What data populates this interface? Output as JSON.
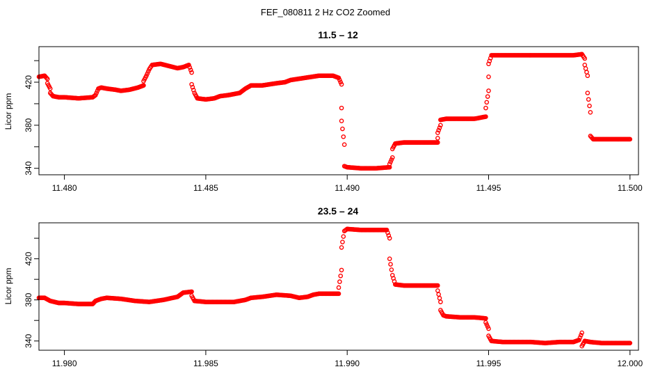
{
  "figure": {
    "super_title": "FEF_080811  2 Hz CO2 Zoomed",
    "point_color": "#ff0000"
  },
  "chart_data": [
    {
      "type": "scatter",
      "title": "11.5 – 12",
      "xlabel": "",
      "ylabel": "Licor ppm",
      "xlim": [
        11.4791,
        11.5003
      ],
      "ylim": [
        334,
        453
      ],
      "x_ticks": [
        11.48,
        11.485,
        11.49,
        11.495,
        11.5
      ],
      "x_tick_labels": [
        "11.480",
        "11.485",
        "11.490",
        "11.495",
        "11.500"
      ],
      "y_ticks": [
        340,
        360,
        380,
        400,
        420,
        440
      ],
      "y_tick_labels": [
        "340",
        "",
        "380",
        "",
        "420",
        ""
      ],
      "grid": false,
      "marker": "open-circle",
      "series": [
        {
          "points": [
            [
              11.4791,
              425
            ],
            [
              11.4793,
              426
            ],
            [
              11.4794,
              423
            ],
            [
              11.4794,
              419
            ],
            [
              11.4795,
              414
            ],
            [
              11.4795,
              410
            ],
            [
              11.4796,
              407
            ],
            [
              11.4798,
              406
            ],
            [
              11.48,
              406
            ],
            [
              11.4805,
              405
            ],
            [
              11.481,
              406
            ],
            [
              11.4811,
              408
            ],
            [
              11.4812,
              414
            ],
            [
              11.4813,
              415
            ],
            [
              11.4815,
              414
            ],
            [
              11.4818,
              413
            ],
            [
              11.482,
              412
            ],
            [
              11.4823,
              413
            ],
            [
              11.4826,
              415
            ],
            [
              11.4828,
              417
            ],
            [
              11.4828,
              421
            ],
            [
              11.4829,
              426
            ],
            [
              11.483,
              432
            ],
            [
              11.4831,
              436
            ],
            [
              11.4834,
              437
            ],
            [
              11.4837,
              435
            ],
            [
              11.484,
              433
            ],
            [
              11.4842,
              434
            ],
            [
              11.4844,
              436
            ],
            [
              11.4845,
              429
            ],
            [
              11.4845,
              418
            ],
            [
              11.4846,
              410
            ],
            [
              11.4847,
              405
            ],
            [
              11.485,
              404
            ],
            [
              11.4853,
              405
            ],
            [
              11.4855,
              407
            ],
            [
              11.4858,
              408
            ],
            [
              11.486,
              409
            ],
            [
              11.4862,
              410
            ],
            [
              11.4864,
              414
            ],
            [
              11.4866,
              417
            ],
            [
              11.487,
              417
            ],
            [
              11.4875,
              419
            ],
            [
              11.4878,
              420
            ],
            [
              11.488,
              422
            ],
            [
              11.4885,
              424
            ],
            [
              11.489,
              426
            ],
            [
              11.4895,
              426
            ],
            [
              11.4897,
              424
            ],
            [
              11.4898,
              418
            ],
            [
              11.4898,
              396
            ],
            [
              11.4898,
              384
            ],
            [
              11.4899,
              362
            ],
            [
              11.4899,
              342
            ],
            [
              11.49,
              341
            ],
            [
              11.4905,
              340
            ],
            [
              11.491,
              340
            ],
            [
              11.4915,
              341
            ],
            [
              11.4915,
              344
            ],
            [
              11.4916,
              350
            ],
            [
              11.4916,
              358
            ],
            [
              11.4917,
              363
            ],
            [
              11.492,
              364
            ],
            [
              11.4925,
              364
            ],
            [
              11.4932,
              364
            ],
            [
              11.4932,
              368
            ],
            [
              11.4932,
              373
            ],
            [
              11.4933,
              380
            ],
            [
              11.4933,
              385
            ],
            [
              11.4935,
              386
            ],
            [
              11.494,
              386
            ],
            [
              11.4945,
              386
            ],
            [
              11.4949,
              388
            ],
            [
              11.4949,
              396
            ],
            [
              11.495,
              412
            ],
            [
              11.495,
              425
            ],
            [
              11.495,
              437
            ],
            [
              11.4951,
              445
            ],
            [
              11.4955,
              445
            ],
            [
              11.496,
              445
            ],
            [
              11.4965,
              445
            ],
            [
              11.497,
              445
            ],
            [
              11.4975,
              445
            ],
            [
              11.498,
              445
            ],
            [
              11.4983,
              446
            ],
            [
              11.4984,
              442
            ],
            [
              11.4984,
              436
            ],
            [
              11.4985,
              426
            ],
            [
              11.4985,
              410
            ],
            [
              11.4986,
              392
            ],
            [
              11.4986,
              370
            ],
            [
              11.4987,
              367
            ],
            [
              11.499,
              367
            ],
            [
              11.4995,
              367
            ],
            [
              11.5,
              367
            ]
          ]
        }
      ]
    },
    {
      "type": "scatter",
      "title": "23.5 – 24",
      "xlabel": "",
      "ylabel": "Licor ppm",
      "xlim": [
        11.9791,
        12.0003
      ],
      "ylim": [
        331,
        455
      ],
      "x_ticks": [
        11.98,
        11.985,
        11.99,
        11.995,
        12.0
      ],
      "x_tick_labels": [
        "11.980",
        "11.985",
        "11.990",
        "11.995",
        "12.000"
      ],
      "y_ticks": [
        340,
        360,
        380,
        400,
        420,
        440
      ],
      "y_tick_labels": [
        "340",
        "",
        "380",
        "",
        "420",
        ""
      ],
      "grid": false,
      "marker": "open-circle",
      "series": [
        {
          "points": [
            [
              11.9791,
              382
            ],
            [
              11.9793,
              382
            ],
            [
              11.9795,
              379
            ],
            [
              11.9798,
              377
            ],
            [
              11.98,
              377
            ],
            [
              11.9805,
              376
            ],
            [
              11.981,
              376
            ],
            [
              11.9811,
              379
            ],
            [
              11.9813,
              381
            ],
            [
              11.9815,
              382
            ],
            [
              11.982,
              381
            ],
            [
              11.9825,
              379
            ],
            [
              11.983,
              378
            ],
            [
              11.9835,
              380
            ],
            [
              11.984,
              383
            ],
            [
              11.9842,
              387
            ],
            [
              11.9845,
              388
            ],
            [
              11.9845,
              384
            ],
            [
              11.9846,
              379
            ],
            [
              11.985,
              378
            ],
            [
              11.9855,
              378
            ],
            [
              11.986,
              378
            ],
            [
              11.9864,
              380
            ],
            [
              11.9866,
              382
            ],
            [
              11.987,
              383
            ],
            [
              11.9875,
              385
            ],
            [
              11.988,
              384
            ],
            [
              11.9883,
              382
            ],
            [
              11.9886,
              383
            ],
            [
              11.9888,
              385
            ],
            [
              11.989,
              386
            ],
            [
              11.9897,
              386
            ],
            [
              11.9897,
              392
            ],
            [
              11.9898,
              409
            ],
            [
              11.9898,
              431
            ],
            [
              11.9899,
              447
            ],
            [
              11.99,
              449
            ],
            [
              11.9905,
              448
            ],
            [
              11.991,
              448
            ],
            [
              11.9914,
              448
            ],
            [
              11.9915,
              440
            ],
            [
              11.9915,
              420
            ],
            [
              11.9916,
              404
            ],
            [
              11.9917,
              395
            ],
            [
              11.992,
              394
            ],
            [
              11.9925,
              394
            ],
            [
              11.9932,
              394
            ],
            [
              11.9932,
              389
            ],
            [
              11.9933,
              378
            ],
            [
              11.9933,
              370
            ],
            [
              11.9934,
              365
            ],
            [
              11.9935,
              364
            ],
            [
              11.994,
              363
            ],
            [
              11.9945,
              363
            ],
            [
              11.9949,
              362
            ],
            [
              11.9949,
              358
            ],
            [
              11.995,
              352
            ],
            [
              11.995,
              345
            ],
            [
              11.9951,
              340
            ],
            [
              11.9955,
              339
            ],
            [
              11.996,
              339
            ],
            [
              11.9965,
              339
            ],
            [
              11.997,
              338
            ],
            [
              11.9975,
              339
            ],
            [
              11.998,
              339
            ],
            [
              11.9982,
              341
            ],
            [
              11.9983,
              348
            ],
            [
              11.9983,
              335
            ],
            [
              11.9984,
              340
            ],
            [
              11.9986,
              339
            ],
            [
              11.999,
              338
            ],
            [
              11.9995,
              338
            ],
            [
              12.0,
              338
            ]
          ]
        }
      ]
    }
  ]
}
